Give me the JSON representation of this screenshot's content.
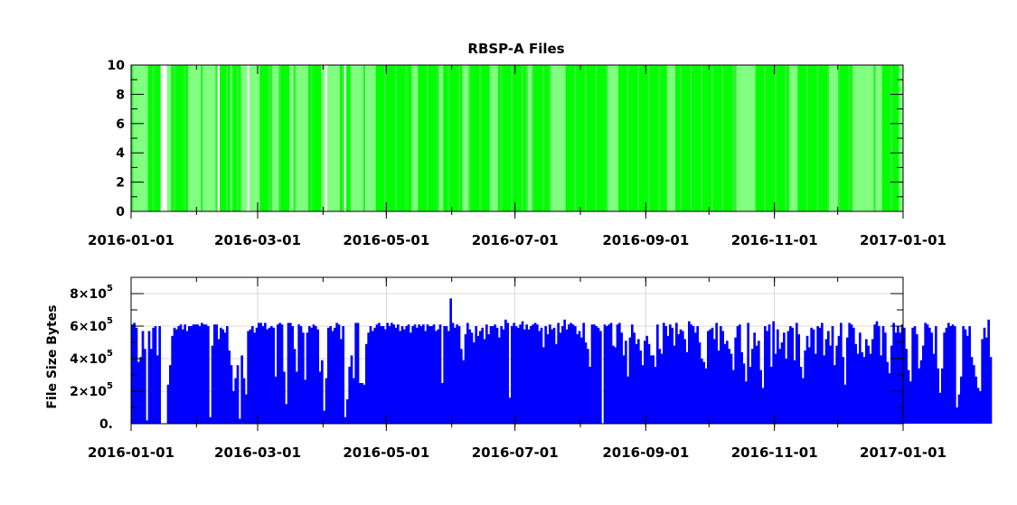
{
  "chart_data": [
    {
      "type": "heatmap",
      "title": "RBSP-A Files",
      "xlabel": "",
      "ylabel": "",
      "xlim": [
        "2016-01-01",
        "2017-01-01"
      ],
      "ylim": [
        0,
        10
      ],
      "ytick_labels": [
        "0",
        "2",
        "4",
        "6",
        "8",
        "10"
      ],
      "xtick_labels": [
        "2016-01-01",
        "2016-03-01",
        "2016-05-01",
        "2016-07-01",
        "2016-09-01",
        "2016-11-01",
        "2017-01-01"
      ],
      "grid": false,
      "colors": {
        "light": "#80ff80",
        "medium": "#33ee33",
        "bright": "#00ff00",
        "gap": "#ffffff"
      },
      "gap_days": [
        14,
        15,
        16,
        41,
        55,
        92,
        101
      ],
      "bright_ranges": [
        [
          8,
          17
        ],
        [
          19,
          23
        ],
        [
          23,
          27
        ],
        [
          40,
          47
        ],
        [
          48,
          52
        ],
        [
          61,
          66
        ],
        [
          70,
          75
        ],
        [
          84,
          90
        ],
        [
          99,
          104
        ],
        [
          116,
          133
        ],
        [
          136,
          146
        ],
        [
          148,
          157
        ],
        [
          160,
          170
        ],
        [
          174,
          187
        ],
        [
          190,
          198
        ],
        [
          206,
          226
        ],
        [
          231,
          254
        ],
        [
          258,
          286
        ],
        [
          296,
          312
        ],
        [
          316,
          330
        ],
        [
          335,
          342
        ],
        [
          356,
          364
        ]
      ]
    },
    {
      "type": "bar",
      "title": "",
      "xlabel": "",
      "ylabel": "File Size Bytes",
      "xlim": [
        "2016-01-01",
        "2017-01-01"
      ],
      "ylim": [
        0,
        900000
      ],
      "ytick_labels": [
        {
          "mantissa": "0.",
          "exp": ""
        },
        {
          "mantissa": "2×10",
          "exp": "5"
        },
        {
          "mantissa": "4×10",
          "exp": "5"
        },
        {
          "mantissa": "6×10",
          "exp": "5"
        },
        {
          "mantissa": "8×10",
          "exp": "5"
        }
      ],
      "xtick_labels": [
        "2016-01-01",
        "2016-03-01",
        "2016-05-01",
        "2016-07-01",
        "2016-09-01",
        "2016-11-01",
        "2017-01-01"
      ],
      "grid": true,
      "bar_color": "#0000ff",
      "series": [
        {
          "values": [
            610000,
            620000,
            590000,
            380000,
            410000,
            570000,
            460000,
            20000,
            570000,
            460000,
            590000,
            600000,
            420000,
            600000,
            0,
            0,
            0,
            240000,
            360000,
            540000,
            590000,
            580000,
            600000,
            610000,
            580000,
            610000,
            570000,
            600000,
            600000,
            610000,
            610000,
            610000,
            600000,
            620000,
            610000,
            610000,
            600000,
            40000,
            480000,
            610000,
            610000,
            520000,
            590000,
            580000,
            560000,
            600000,
            450000,
            360000,
            200000,
            280000,
            360000,
            30000,
            420000,
            280000,
            180000,
            570000,
            580000,
            600000,
            560000,
            590000,
            620000,
            620000,
            600000,
            620000,
            580000,
            590000,
            600000,
            590000,
            290000,
            610000,
            620000,
            610000,
            320000,
            120000,
            620000,
            620000,
            600000,
            460000,
            320000,
            610000,
            600000,
            560000,
            270000,
            560000,
            600000,
            590000,
            610000,
            600000,
            580000,
            320000,
            390000,
            80000,
            280000,
            590000,
            600000,
            570000,
            590000,
            620000,
            610000,
            520000,
            600000,
            40000,
            150000,
            350000,
            420000,
            280000,
            620000,
            620000,
            250000,
            250000,
            240000,
            490000,
            560000,
            600000,
            570000,
            590000,
            610000,
            620000,
            600000,
            600000,
            580000,
            620000,
            600000,
            620000,
            610000,
            590000,
            610000,
            570000,
            600000,
            580000,
            600000,
            610000,
            560000,
            600000,
            610000,
            590000,
            610000,
            600000,
            610000,
            570000,
            610000,
            600000,
            600000,
            610000,
            570000,
            580000,
            610000,
            250000,
            600000,
            600000,
            570000,
            770000,
            620000,
            590000,
            610000,
            600000,
            460000,
            390000,
            550000,
            620000,
            580000,
            560000,
            500000,
            600000,
            540000,
            570000,
            590000,
            520000,
            610000,
            550000,
            600000,
            600000,
            610000,
            590000,
            530000,
            600000,
            580000,
            640000,
            620000,
            160000,
            600000,
            620000,
            600000,
            590000,
            610000,
            630000,
            580000,
            610000,
            580000,
            600000,
            610000,
            620000,
            610000,
            570000,
            590000,
            470000,
            600000,
            550000,
            610000,
            580000,
            590000,
            490000,
            620000,
            560000,
            600000,
            640000,
            580000,
            610000,
            620000,
            610000,
            600000,
            550000,
            570000,
            530000,
            620000,
            500000,
            460000,
            350000,
            610000,
            610000,
            600000,
            590000,
            570000,
            0,
            610000,
            600000,
            610000,
            620000,
            480000,
            470000,
            610000,
            620000,
            560000,
            420000,
            510000,
            290000,
            530000,
            610000,
            560000,
            490000,
            520000,
            450000,
            360000,
            510000,
            540000,
            490000,
            420000,
            420000,
            350000,
            610000,
            460000,
            430000,
            620000,
            600000,
            540000,
            610000,
            590000,
            480000,
            620000,
            550000,
            580000,
            570000,
            520000,
            440000,
            630000,
            610000,
            600000,
            560000,
            600000,
            500000,
            400000,
            380000,
            340000,
            570000,
            580000,
            590000,
            520000,
            620000,
            450000,
            600000,
            570000,
            490000,
            510000,
            460000,
            430000,
            330000,
            530000,
            600000,
            610000,
            440000,
            370000,
            260000,
            620000,
            350000,
            460000,
            560000,
            480000,
            510000,
            330000,
            220000,
            600000,
            570000,
            610000,
            350000,
            630000,
            430000,
            580000,
            460000,
            500000,
            560000,
            400000,
            570000,
            600000,
            590000,
            390000,
            620000,
            550000,
            350000,
            280000,
            450000,
            540000,
            470000,
            590000,
            580000,
            430000,
            600000,
            590000,
            620000,
            420000,
            520000,
            570000,
            480000,
            600000,
            360000,
            480000,
            540000,
            620000,
            410000,
            240000,
            530000,
            620000,
            610000,
            590000,
            490000,
            430000,
            560000,
            440000,
            410000,
            520000,
            480000,
            430000,
            520000,
            610000,
            630000,
            600000,
            420000,
            600000,
            560000,
            380000,
            310000,
            480000,
            620000,
            560000,
            600000,
            560000,
            610000,
            590000,
            460000,
            330000,
            260000,
            590000,
            600000,
            550000,
            340000,
            390000,
            480000,
            620000,
            610000,
            590000,
            560000,
            430000,
            600000,
            340000,
            190000,
            340000,
            560000,
            590000,
            620000,
            600000,
            610000,
            600000,
            100000,
            180000,
            290000,
            600000,
            580000,
            540000,
            600000,
            410000,
            360000,
            290000,
            220000,
            200000,
            520000,
            590000,
            530000,
            640000,
            410000
          ]
        }
      ]
    }
  ]
}
